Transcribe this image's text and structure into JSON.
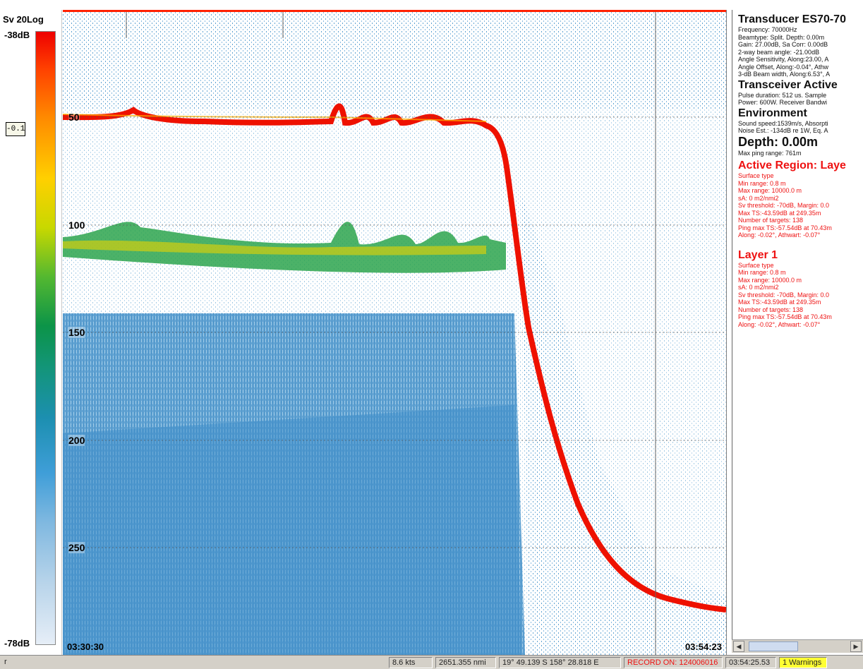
{
  "scale": {
    "title": "Sv 20Log",
    "max": "-38dB",
    "min": "-78dB",
    "threshold": "-0.1"
  },
  "echogram": {
    "depth_labels": [
      "50",
      "100",
      "150",
      "200",
      "250"
    ],
    "time_start": "03:30:30",
    "time_end": "03:54:23"
  },
  "info": {
    "transducer_title": "Transducer ES70-70",
    "transducer_lines": [
      "Frequency: 70000Hz",
      "Beamtype: Split. Depth: 0.00m",
      "Gain: 27.00dB, Sa Corr: 0.00dB",
      "2-way beam angle: -21.00dB",
      "Angle Sensitivity, Along:23.00, A",
      "Angle Offset, Along:-0.04°, Athw",
      "3-dB Beam width, Along:6.53°, A"
    ],
    "transceiver_title": "Transceiver Active",
    "transceiver_lines": [
      "Pulse duration: 512 us. Sample",
      "Power: 600W. Receiver Bandwi"
    ],
    "environment_title": "Environment",
    "environment_lines": [
      "Sound speed:1539m/s, Absorpti",
      "Noise Est.: -134dB re 1W, Eq. A"
    ],
    "depth_title": "Depth: 0.00m",
    "depth_lines": [
      "Max ping range: 761m"
    ],
    "active_region_title": "Active Region: Laye",
    "active_region_lines": [
      "Surface type",
      "Min range: 0.8 m",
      "Max range: 10000.0 m",
      "sA: 0 m2/nmi2",
      "Sv threshold: -70dB, Margin: 0.0",
      "Max TS:-43.59dB at 249.35m",
      "Number of targets:  138",
      "Ping max TS:-57.54dB at 70.43m",
      "Along: -0.02°, Athwart: -0.07°"
    ],
    "layer_title": "Layer 1",
    "layer_lines": [
      "Surface type",
      "Min range: 0.8 m",
      "Max range: 10000.0 m",
      "sA: 0 m2/nmi2",
      "Sv threshold: -70dB, Margin: 0.0",
      "Max TS:-43.59dB at 249.35m",
      "Number of targets:  138",
      "Ping max TS:-57.54dB at 70.43m",
      "Along: -0.02°, Athwart: -0.07°"
    ]
  },
  "status": {
    "left_glyph": "r",
    "speed": "8.6 kts",
    "distance": "2651.355 nmi",
    "position": "19° 49.139 S  158° 28.818 E",
    "record": "RECORD ON: 124006016",
    "clock": "03:54:25.53",
    "warnings": "1 Warnings"
  },
  "colors": {
    "accent_red": "#ee1111",
    "status_warning_bg": "#ffff33",
    "echogram_blue": "#3f8fc8"
  }
}
